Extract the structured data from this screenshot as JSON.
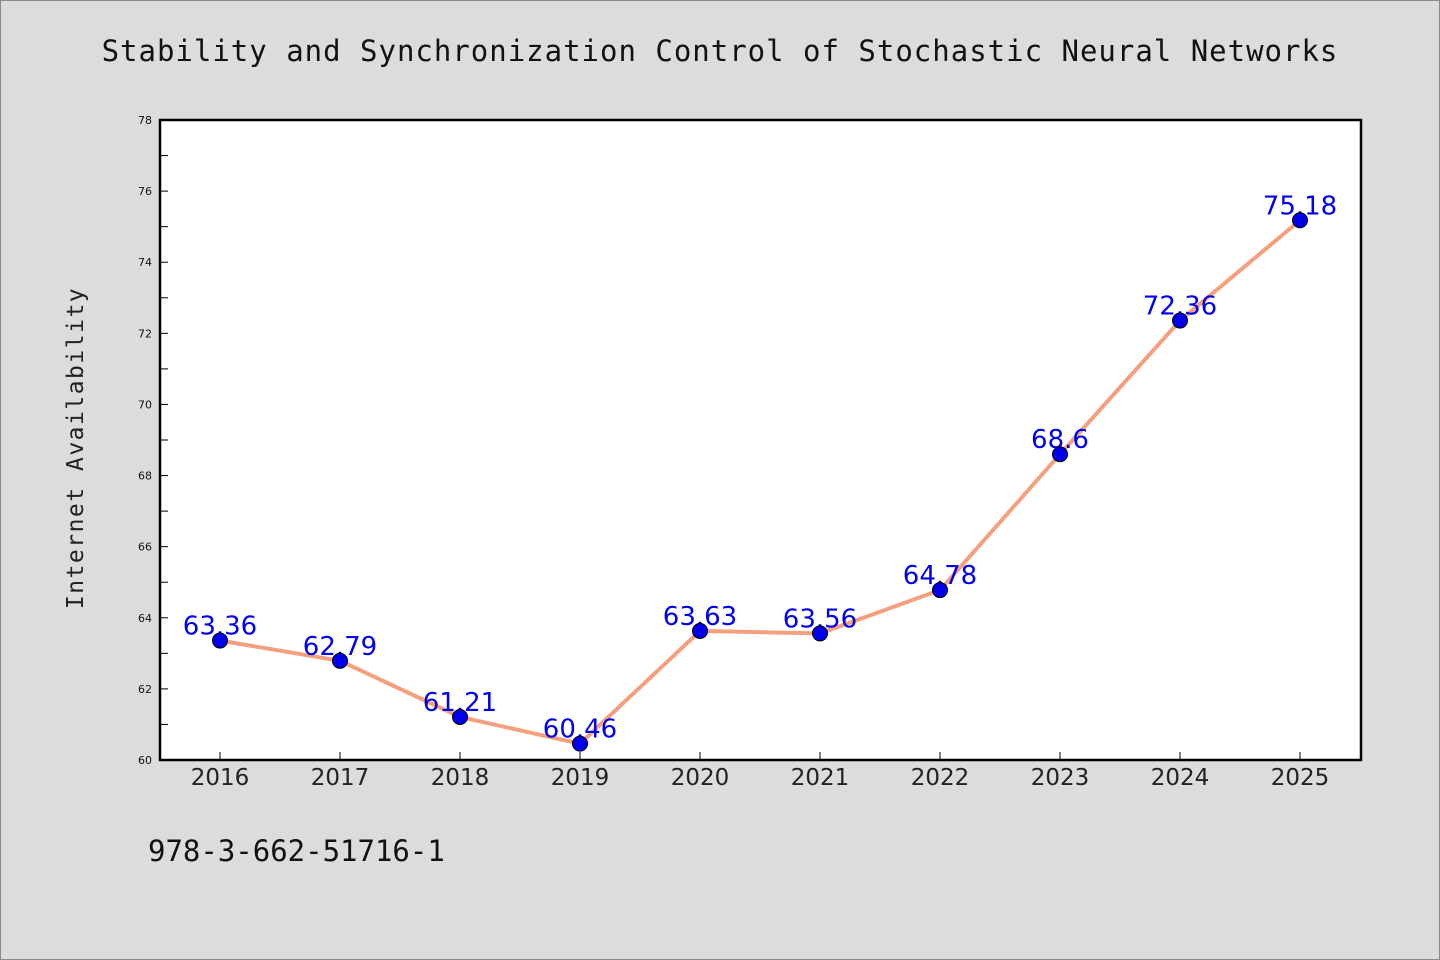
{
  "title": "Stability and Synchronization Control of Stochastic Neural Networks",
  "footer": "978-3-662-51716-1",
  "chart_data": {
    "type": "line",
    "title": "Stability and Synchronization Control of Stochastic Neural Networks",
    "xlabel": "",
    "ylabel": "Internet Availability",
    "categories": [
      "2016",
      "2017",
      "2018",
      "2019",
      "2020",
      "2021",
      "2022",
      "2023",
      "2024",
      "2025"
    ],
    "series": [
      {
        "values": [
          63.36,
          62.79,
          61.21,
          60.46,
          63.63,
          63.56,
          64.78,
          68.6,
          72.36,
          75.18
        ],
        "labels": [
          "63.36",
          "62.79",
          "61.21",
          "60.46",
          "63.63",
          "63.56",
          "64.78",
          "68.6",
          "72.36",
          "75.18"
        ]
      }
    ],
    "ylim": [
      60,
      78
    ],
    "yticks": [
      60,
      62,
      64,
      66,
      68,
      70,
      72,
      74,
      76,
      78
    ],
    "grid": false,
    "legend": "none",
    "colors": {
      "line": "#f4a07f",
      "marker": "#0000ee",
      "label": "#0000ee",
      "background": "#dcdcdc",
      "plot_background": "#ffffff"
    }
  }
}
